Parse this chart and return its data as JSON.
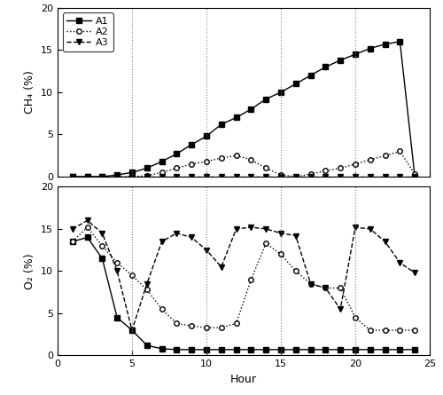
{
  "ch4_hours_A1": [
    1,
    2,
    3,
    4,
    5,
    6,
    7,
    8,
    9,
    10,
    11,
    12,
    13,
    14,
    15,
    16,
    17,
    18,
    19,
    20,
    21,
    22,
    23,
    24
  ],
  "ch4_A1": [
    0,
    0,
    0,
    0.2,
    0.5,
    1.0,
    1.8,
    2.7,
    3.8,
    4.8,
    6.2,
    7.0,
    8.0,
    9.2,
    10.0,
    11.0,
    12.0,
    13.0,
    13.8,
    14.5,
    15.2,
    15.7,
    16.0,
    0
  ],
  "ch4_hours_A2": [
    1,
    2,
    3,
    4,
    5,
    6,
    7,
    8,
    9,
    10,
    11,
    12,
    13,
    14,
    15,
    16,
    17,
    18,
    19,
    20,
    21,
    22,
    23,
    24
  ],
  "ch4_A2": [
    0,
    0,
    0,
    0,
    0,
    0.1,
    0.5,
    1.0,
    1.5,
    1.8,
    2.2,
    2.5,
    2.0,
    1.0,
    0.2,
    0.0,
    0.3,
    0.7,
    1.0,
    1.5,
    2.0,
    2.5,
    3.0,
    0.3
  ],
  "ch4_hours_A3": [
    1,
    2,
    3,
    4,
    5,
    6,
    7,
    8,
    9,
    10,
    11,
    12,
    13,
    14,
    15,
    16,
    17,
    18,
    19,
    20,
    21,
    22,
    23,
    24
  ],
  "ch4_A3": [
    0,
    0,
    0,
    0,
    0,
    0,
    0,
    0,
    0,
    0,
    0,
    0,
    0,
    0,
    0,
    0,
    0,
    0,
    0,
    0,
    0,
    0,
    0,
    0
  ],
  "o2_hours": [
    1,
    2,
    3,
    4,
    5,
    6,
    7,
    8,
    9,
    10,
    11,
    12,
    13,
    14,
    15,
    16,
    17,
    18,
    19,
    20,
    21,
    22,
    23,
    24
  ],
  "o2_A1": [
    13.5,
    14.0,
    11.5,
    4.5,
    3.0,
    1.2,
    0.8,
    0.7,
    0.7,
    0.7,
    0.7,
    0.7,
    0.7,
    0.7,
    0.7,
    0.7,
    0.7,
    0.7,
    0.7,
    0.7,
    0.7,
    0.7,
    0.7,
    0.7
  ],
  "o2_A2": [
    13.5,
    15.2,
    13.0,
    11.0,
    9.5,
    7.8,
    5.5,
    3.8,
    3.5,
    3.3,
    3.3,
    3.8,
    9.0,
    13.3,
    12.0,
    10.0,
    8.5,
    8.0,
    8.0,
    4.5,
    3.0,
    3.0,
    3.0,
    3.0
  ],
  "o2_A3": [
    15.0,
    16.0,
    14.5,
    10.0,
    3.0,
    8.5,
    13.5,
    14.5,
    14.0,
    12.5,
    10.5,
    15.0,
    15.2,
    15.0,
    14.5,
    14.2,
    8.5,
    8.0,
    5.5,
    15.2,
    15.0,
    13.5,
    11.0,
    9.8
  ],
  "vlines": [
    5,
    10,
    15,
    20
  ],
  "ch4_ylim": [
    0,
    20
  ],
  "o2_ylim": [
    0,
    20
  ],
  "xlim": [
    0,
    24
  ],
  "xticks": [
    0,
    5,
    10,
    15,
    20,
    25
  ],
  "yticks": [
    0,
    5,
    10,
    15,
    20
  ],
  "xlabel": "Hour",
  "ch4_ylabel": "CH₄ (%)",
  "o2_ylabel": "O₂ (%)",
  "legend_labels": [
    "A1",
    "A2",
    "A3"
  ],
  "line_color": "black",
  "bg_color": "white"
}
